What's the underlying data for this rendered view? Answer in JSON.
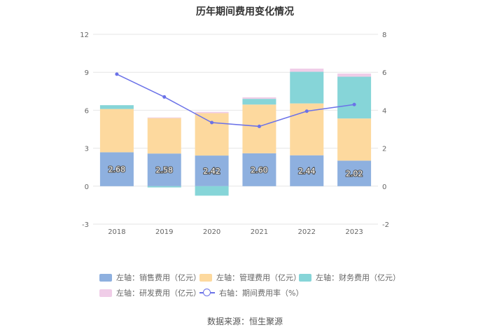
{
  "title": "历年期间费用变化情况",
  "source": "数据来源：恒生聚源",
  "colors": {
    "sales": "#8eb0df",
    "admin": "#fdd99e",
    "finance": "#86d5d8",
    "rnd": "#f0cde8",
    "rate": "#6b72e8"
  },
  "legend": [
    {
      "key": "sales",
      "label": "左轴：销售费用（亿元）"
    },
    {
      "key": "admin",
      "label": "左轴：管理费用（亿元）"
    },
    {
      "key": "finance",
      "label": "左轴：财务费用（亿元）"
    },
    {
      "key": "rnd",
      "label": "左轴：研发费用（亿元）"
    },
    {
      "key": "rate",
      "label": "右轴：期间费用率（%）"
    }
  ],
  "chart_data": {
    "type": "bar",
    "stacked": true,
    "title": "历年期间费用变化情况",
    "categories": [
      "2018",
      "2019",
      "2020",
      "2021",
      "2022",
      "2023"
    ],
    "left_axis": {
      "min": -3,
      "max": 12,
      "ticks": [
        "-3",
        "0",
        "3",
        "6",
        "9",
        "12"
      ]
    },
    "right_axis": {
      "min": -2,
      "max": 8,
      "ticks": [
        "-2",
        "0",
        "2",
        "4",
        "6",
        "8"
      ]
    },
    "series": [
      {
        "name": "左轴：销售费用（亿元）",
        "key": "sales",
        "axis": "left",
        "values": [
          2.68,
          2.58,
          2.42,
          2.6,
          2.44,
          2.02
        ],
        "labels": [
          "2.68",
          "2.58",
          "2.42",
          "2.60",
          "2.44",
          "2.02"
        ]
      },
      {
        "name": "左轴：管理费用（亿元）",
        "key": "admin",
        "axis": "left",
        "values": [
          3.42,
          2.8,
          3.35,
          3.85,
          4.1,
          3.33
        ]
      },
      {
        "name": "左轴：财务费用（亿元）",
        "key": "finance",
        "axis": "left",
        "values": [
          0.3,
          -0.1,
          -0.75,
          0.45,
          2.5,
          3.3
        ]
      },
      {
        "name": "左轴：研发费用（亿元）",
        "key": "rnd",
        "axis": "left",
        "values": [
          0.0,
          0.05,
          0.1,
          0.12,
          0.25,
          0.25
        ]
      },
      {
        "name": "右轴：期间费用率（%）",
        "key": "rate",
        "axis": "right",
        "type": "line",
        "values": [
          5.9,
          4.7,
          3.35,
          3.15,
          3.95,
          4.3
        ]
      }
    ]
  }
}
